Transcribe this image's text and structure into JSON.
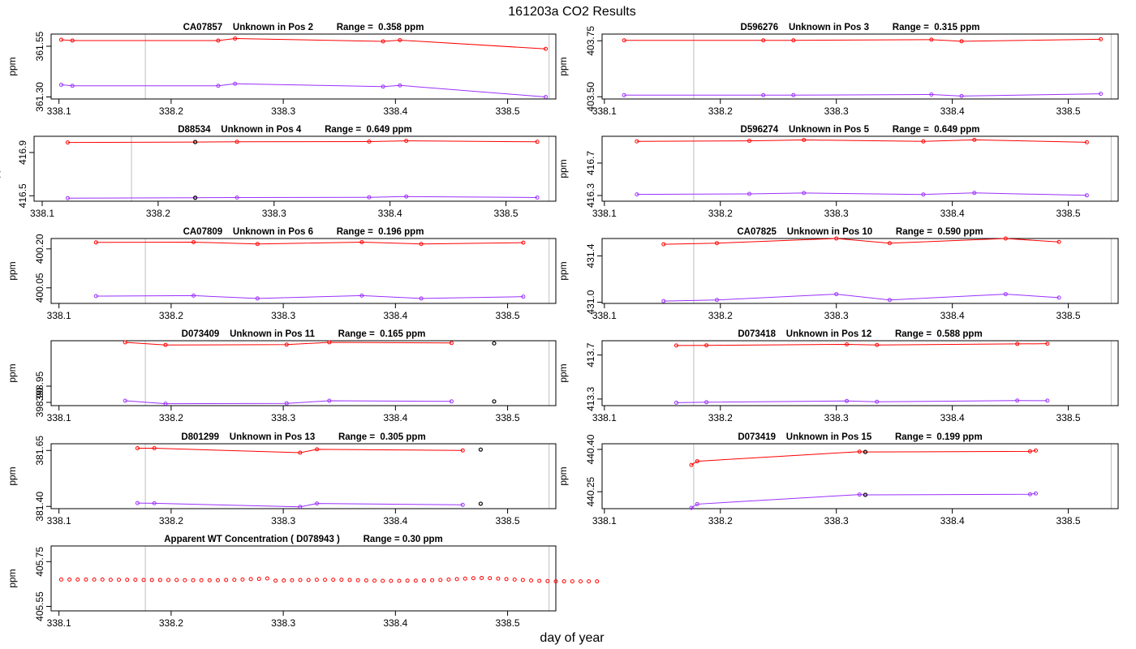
{
  "title": "161203a  CO2 Results",
  "xlabel": "day of year",
  "colors": {
    "upper": "#ff0000",
    "lower": "#9b30ff",
    "flag": "#000000",
    "frame": "#000000",
    "vline": "#bebebe"
  },
  "x_ticks": [
    338.1,
    338.2,
    338.3,
    338.4,
    338.5
  ],
  "chart_data": [
    {
      "type": "line",
      "title": "CA07857    Unknown in Pos 2         Range =  0.358 ppm",
      "ylabel": "ppm",
      "xlim": [
        338.093,
        338.543
      ],
      "ylim": [
        361.29,
        361.61
      ],
      "yticks": [
        361.3,
        361.55
      ],
      "ytick_labels": [
        "361.30",
        "361.55"
      ],
      "vlines": [
        338.177,
        338.537
      ],
      "series": [
        {
          "name": "upper",
          "x": [
            338.102,
            338.112,
            338.242,
            338.257,
            338.389,
            338.404,
            338.534
          ],
          "y": [
            361.582,
            361.578,
            361.578,
            361.588,
            361.574,
            361.58,
            361.537
          ]
        },
        {
          "name": "lower",
          "x": [
            338.102,
            338.112,
            338.242,
            338.257,
            338.389,
            338.404,
            338.534
          ],
          "y": [
            361.36,
            361.355,
            361.355,
            361.365,
            361.351,
            361.357,
            361.3
          ]
        }
      ],
      "flags": []
    },
    {
      "type": "line",
      "title": "D596276    Unknown in Pos 3         Range =  0.315 ppm",
      "ylabel": "ppm",
      "xlim": [
        338.098,
        338.543
      ],
      "ylim": [
        403.49,
        403.78
      ],
      "yticks": [
        403.5,
        403.75
      ],
      "ytick_labels": [
        "403.50",
        "403.75"
      ],
      "vlines": [
        338.177,
        338.537
      ],
      "series": [
        {
          "name": "upper",
          "x": [
            338.117,
            338.237,
            338.263,
            338.382,
            338.408,
            338.528
          ],
          "y": [
            403.752,
            403.752,
            403.752,
            403.755,
            403.748,
            403.757
          ]
        },
        {
          "name": "lower",
          "x": [
            338.117,
            338.237,
            338.263,
            338.382,
            338.408,
            338.528
          ],
          "y": [
            403.507,
            403.507,
            403.507,
            403.51,
            403.503,
            403.513
          ]
        }
      ],
      "flags": []
    },
    {
      "type": "line",
      "title": "D88534    Unknown in Pos 4         Range =  0.649 ppm",
      "ylabel": "ppm",
      "xlim": [
        338.093,
        338.543
      ],
      "ylim": [
        416.45,
        417.05
      ],
      "yticks": [
        416.5,
        416.9
      ],
      "ytick_labels": [
        "416.5",
        "416.9"
      ],
      "vlines": [
        338.177,
        338.537
      ],
      "series": [
        {
          "name": "upper",
          "x": [
            338.122,
            338.232,
            338.268,
            338.382,
            338.414,
            338.527
          ],
          "y": [
            416.993,
            416.997,
            416.999,
            417.001,
            417.008,
            416.999
          ]
        },
        {
          "name": "lower",
          "x": [
            338.122,
            338.232,
            338.268,
            338.382,
            338.414,
            338.527
          ],
          "y": [
            416.478,
            416.482,
            416.484,
            416.486,
            416.493,
            416.484
          ]
        }
      ],
      "flags": [
        {
          "x": 338.232,
          "y": 416.997
        },
        {
          "x": 338.232,
          "y": 416.482
        }
      ]
    },
    {
      "type": "line",
      "title": "D596274    Unknown in Pos 5         Range =  0.649 ppm",
      "ylabel": "ppm",
      "xlim": [
        338.098,
        338.543
      ],
      "ylim": [
        416.23,
        417.03
      ],
      "yticks": [
        416.3,
        416.7
      ],
      "ytick_labels": [
        "416.3",
        "416.7"
      ],
      "vlines": [
        338.177,
        338.537
      ],
      "series": [
        {
          "name": "upper",
          "x": [
            338.128,
            338.225,
            338.272,
            338.375,
            338.419,
            338.516
          ],
          "y": [
            416.968,
            416.974,
            416.985,
            416.967,
            416.986,
            416.956
          ]
        },
        {
          "name": "lower",
          "x": [
            338.128,
            338.225,
            338.272,
            338.375,
            338.419,
            338.516
          ],
          "y": [
            416.314,
            416.32,
            416.331,
            416.313,
            416.332,
            416.302
          ]
        }
      ],
      "flags": []
    },
    {
      "type": "line",
      "title": "CA07809    Unknown in Pos 6         Range =  0.196 ppm",
      "ylabel": "ppm",
      "xlim": [
        338.093,
        338.543
      ],
      "ylim": [
        399.99,
        400.24
      ],
      "yticks": [
        400.05,
        400.2
      ],
      "ytick_labels": [
        "400.05",
        "400.20"
      ],
      "vlines": [
        338.177,
        338.537
      ],
      "series": [
        {
          "name": "upper",
          "x": [
            338.133,
            338.22,
            338.277,
            338.37,
            338.423,
            338.514
          ],
          "y": [
            400.225,
            400.226,
            400.219,
            400.226,
            400.219,
            400.224
          ]
        },
        {
          "name": "lower",
          "x": [
            338.133,
            338.22,
            338.277,
            338.37,
            338.423,
            338.514
          ],
          "y": [
            400.018,
            400.02,
            400.009,
            400.02,
            400.009,
            400.016
          ]
        }
      ],
      "flags": []
    },
    {
      "type": "line",
      "title": "CA07825    Unknown in Pos 10         Range =  0.590 ppm",
      "ylabel": "ppm",
      "xlim": [
        338.098,
        338.543
      ],
      "ylim": [
        430.99,
        431.55
      ],
      "yticks": [
        431.0,
        431.4
      ],
      "ytick_labels": [
        "431.0",
        "431.4"
      ],
      "vlines": [
        338.177,
        338.537
      ],
      "series": [
        {
          "name": "upper",
          "x": [
            338.151,
            338.197,
            338.3,
            338.346,
            338.446,
            338.492
          ],
          "y": [
            431.5,
            431.51,
            431.55,
            431.51,
            431.55,
            431.52
          ]
        },
        {
          "name": "lower",
          "x": [
            338.151,
            338.197,
            338.3,
            338.346,
            338.446,
            338.492
          ],
          "y": [
            431.01,
            431.02,
            431.07,
            431.02,
            431.07,
            431.04
          ]
        }
      ],
      "flags": []
    },
    {
      "type": "line",
      "title": "D073409    Unknown in Pos 11         Range =  0.165 ppm",
      "ylabel": "ppm",
      "xlim": [
        338.093,
        338.543
      ],
      "ylim": [
        398.89,
        399.09
      ],
      "yticks": [
        398.9,
        398.95
      ],
      "ytick_labels": [
        "398.90",
        "398.95"
      ],
      "vlines": [
        338.177,
        338.537
      ],
      "series": [
        {
          "name": "upper",
          "x": [
            338.159,
            338.195,
            338.303,
            338.341,
            338.45
          ],
          "y": [
            399.085,
            399.077,
            399.078,
            399.085,
            399.083
          ]
        },
        {
          "name": "lower",
          "x": [
            338.159,
            338.195,
            338.303,
            338.341,
            338.45
          ],
          "y": [
            398.905,
            398.896,
            398.897,
            398.905,
            398.903
          ]
        }
      ],
      "flags": [
        {
          "x": 338.488,
          "y": 399.082
        },
        {
          "x": 338.488,
          "y": 398.903
        }
      ]
    },
    {
      "type": "line",
      "title": "D073418    Unknown in Pos 12         Range =  0.588 ppm",
      "ylabel": "ppm",
      "xlim": [
        338.098,
        338.543
      ],
      "ylim": [
        413.24,
        413.83
      ],
      "yticks": [
        413.3,
        413.7
      ],
      "ytick_labels": [
        "413.3",
        "413.7"
      ],
      "vlines": [
        338.177,
        338.537
      ],
      "series": [
        {
          "name": "upper",
          "x": [
            338.162,
            338.188,
            338.309,
            338.335,
            338.456,
            338.482
          ],
          "y": [
            413.787,
            413.788,
            413.797,
            413.791,
            413.801,
            413.803
          ]
        },
        {
          "name": "lower",
          "x": [
            338.162,
            338.188,
            338.309,
            338.335,
            338.456,
            338.482
          ],
          "y": [
            413.267,
            413.271,
            413.282,
            413.275,
            413.286,
            413.285
          ]
        }
      ],
      "flags": []
    },
    {
      "type": "line",
      "title": "D801299    Unknown in Pos 13         Range =  0.305 ppm",
      "ylabel": "ppm",
      "xlim": [
        338.093,
        338.543
      ],
      "ylim": [
        381.39,
        381.68
      ],
      "yticks": [
        381.4,
        381.65
      ],
      "ytick_labels": [
        "381.40",
        "381.65"
      ],
      "vlines": [
        338.177,
        338.537
      ],
      "series": [
        {
          "name": "upper",
          "x": [
            338.17,
            338.185,
            338.315,
            338.33,
            338.46
          ],
          "y": [
            381.66,
            381.66,
            381.64,
            381.655,
            381.65
          ]
        },
        {
          "name": "lower",
          "x": [
            338.17,
            338.185,
            338.315,
            338.33,
            338.46
          ],
          "y": [
            381.415,
            381.414,
            381.398,
            381.413,
            381.407
          ]
        }
      ],
      "flags": [
        {
          "x": 338.476,
          "y": 381.654
        },
        {
          "x": 338.476,
          "y": 381.412
        }
      ]
    },
    {
      "type": "line",
      "title": "D073419    Unknown in Pos 15         Range =  0.199 ppm",
      "ylabel": "ppm",
      "xlim": [
        338.098,
        338.543
      ],
      "ylim": [
        440.19,
        440.42
      ],
      "yticks": [
        440.25,
        440.4
      ],
      "ytick_labels": [
        "440.25",
        "440.40"
      ],
      "vlines": [
        338.177,
        338.537
      ],
      "series": [
        {
          "name": "upper",
          "x": [
            338.175,
            338.18,
            338.32,
            338.325,
            338.467,
            338.472
          ],
          "y": [
            440.345,
            440.358,
            440.392,
            440.391,
            440.393,
            440.396
          ]
        },
        {
          "name": "lower",
          "x": [
            338.175,
            338.18,
            338.32,
            338.325,
            338.467,
            338.472
          ],
          "y": [
            440.193,
            440.206,
            440.24,
            440.239,
            440.241,
            440.244
          ]
        }
      ],
      "flags": [
        {
          "x": 338.325,
          "y": 440.391
        },
        {
          "x": 338.325,
          "y": 440.239
        }
      ]
    },
    {
      "type": "scatter",
      "title": "Apparent WT Concentration ( D078943 )         Range = 0.30 ppm",
      "ylabel": "ppm",
      "xlim": [
        338.093,
        338.543
      ],
      "ylim": [
        405.53,
        405.82
      ],
      "yticks": [
        405.55,
        405.75
      ],
      "ytick_labels": [
        "405.55",
        "405.75"
      ],
      "vlines": [
        338.177,
        338.537
      ],
      "x_start": 338.102,
      "x_step": 0.00735,
      "series": [
        {
          "name": "wt",
          "y": [
            405.67,
            405.67,
            405.67,
            405.67,
            405.67,
            405.67,
            405.669,
            405.669,
            405.669,
            405.669,
            405.668,
            405.668,
            405.668,
            405.668,
            405.668,
            405.667,
            405.667,
            405.667,
            405.667,
            405.667,
            405.668,
            405.669,
            405.67,
            405.672,
            405.673,
            405.675,
            405.665,
            405.666,
            405.667,
            405.668,
            405.668,
            405.669,
            405.669,
            405.669,
            405.669,
            405.668,
            405.667,
            405.666,
            405.665,
            405.664,
            405.664,
            405.664,
            405.665,
            405.665,
            405.666,
            405.667,
            405.668,
            405.67,
            405.672,
            405.674,
            405.676,
            405.677,
            405.676,
            405.674,
            405.672,
            405.67,
            405.668,
            405.666,
            405.664,
            405.663,
            405.662,
            405.662,
            405.662,
            405.662,
            405.662,
            405.662
          ]
        }
      ],
      "flags": []
    }
  ]
}
